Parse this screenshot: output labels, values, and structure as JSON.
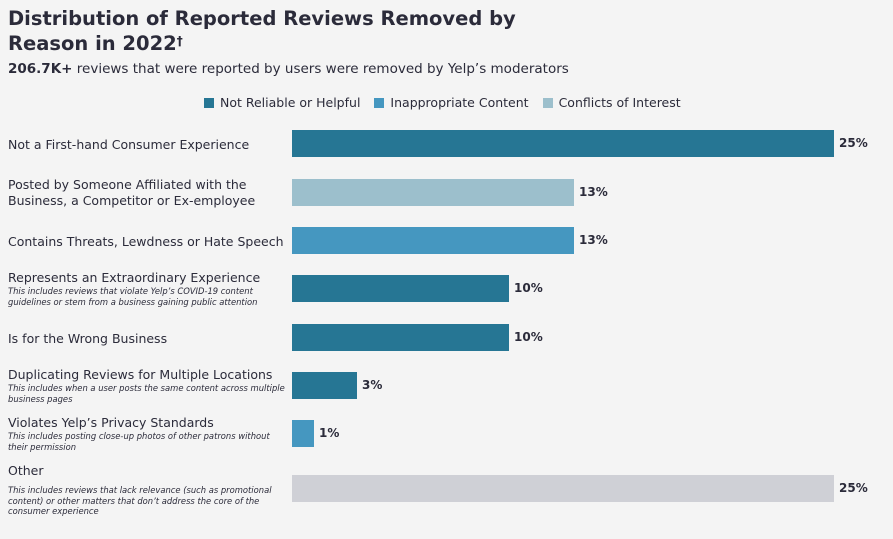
{
  "header": {
    "title": "Distribution of Reported Reviews Removed by Reason in 2022",
    "title_mark": "†",
    "subtitle_bold": "206.7K+",
    "subtitle_rest": " reviews that were reported by users were removed by Yelp’s moderators"
  },
  "colors": {
    "Not Reliable or Helpful": "#267694",
    "Inappropriate Content": "#4597c0",
    "Conflicts of Interest": "#9cbfcc",
    "Other": "#cfd0d6"
  },
  "chart_data": {
    "type": "bar",
    "orientation": "horizontal",
    "title": "Distribution of Reported Reviews Removed by Reason in 2022",
    "xlabel": "",
    "ylabel": "",
    "xlim": [
      0,
      25
    ],
    "legend": [
      "Not Reliable or Helpful",
      "Inappropriate Content",
      "Conflicts of Interest"
    ],
    "categories": [
      {
        "label": "Not a First-hand Consumer Experience",
        "note": "",
        "value": 25,
        "value_label": "25%",
        "group": "Not Reliable or Helpful"
      },
      {
        "label": "Posted by Someone Affiliated with the Business, a Competitor or Ex-employee",
        "note": "",
        "value": 13,
        "value_label": "13%",
        "group": "Conflicts of Interest"
      },
      {
        "label": "Contains Threats, Lewdness or Hate Speech",
        "note": "",
        "value": 13,
        "value_label": "13%",
        "group": "Inappropriate Content"
      },
      {
        "label": "Represents an Extraordinary Experience",
        "note": "This includes reviews that violate Yelp’s COVID-19 content guidelines or stem from a business gaining public attention",
        "value": 10,
        "value_label": "10%",
        "group": "Not Reliable or Helpful"
      },
      {
        "label": "Is for the Wrong Business",
        "note": "",
        "value": 10,
        "value_label": "10%",
        "group": "Not Reliable or Helpful"
      },
      {
        "label": "Duplicating Reviews for Multiple Locations",
        "note": "This includes when a user posts the same content across multiple business pages",
        "value": 3,
        "value_label": "3%",
        "group": "Not Reliable or Helpful"
      },
      {
        "label": "Violates Yelp’s Privacy Standards",
        "note": "This includes posting close-up photos of other patrons without their permission",
        "value": 1,
        "value_label": "1%",
        "group": "Inappropriate Content"
      },
      {
        "label": "Other",
        "note": "This includes reviews that lack relevance (such as promotional content) or other matters that don’t address the core of the consumer experience",
        "value": 25,
        "value_label": "25%",
        "group": "Other"
      }
    ]
  }
}
